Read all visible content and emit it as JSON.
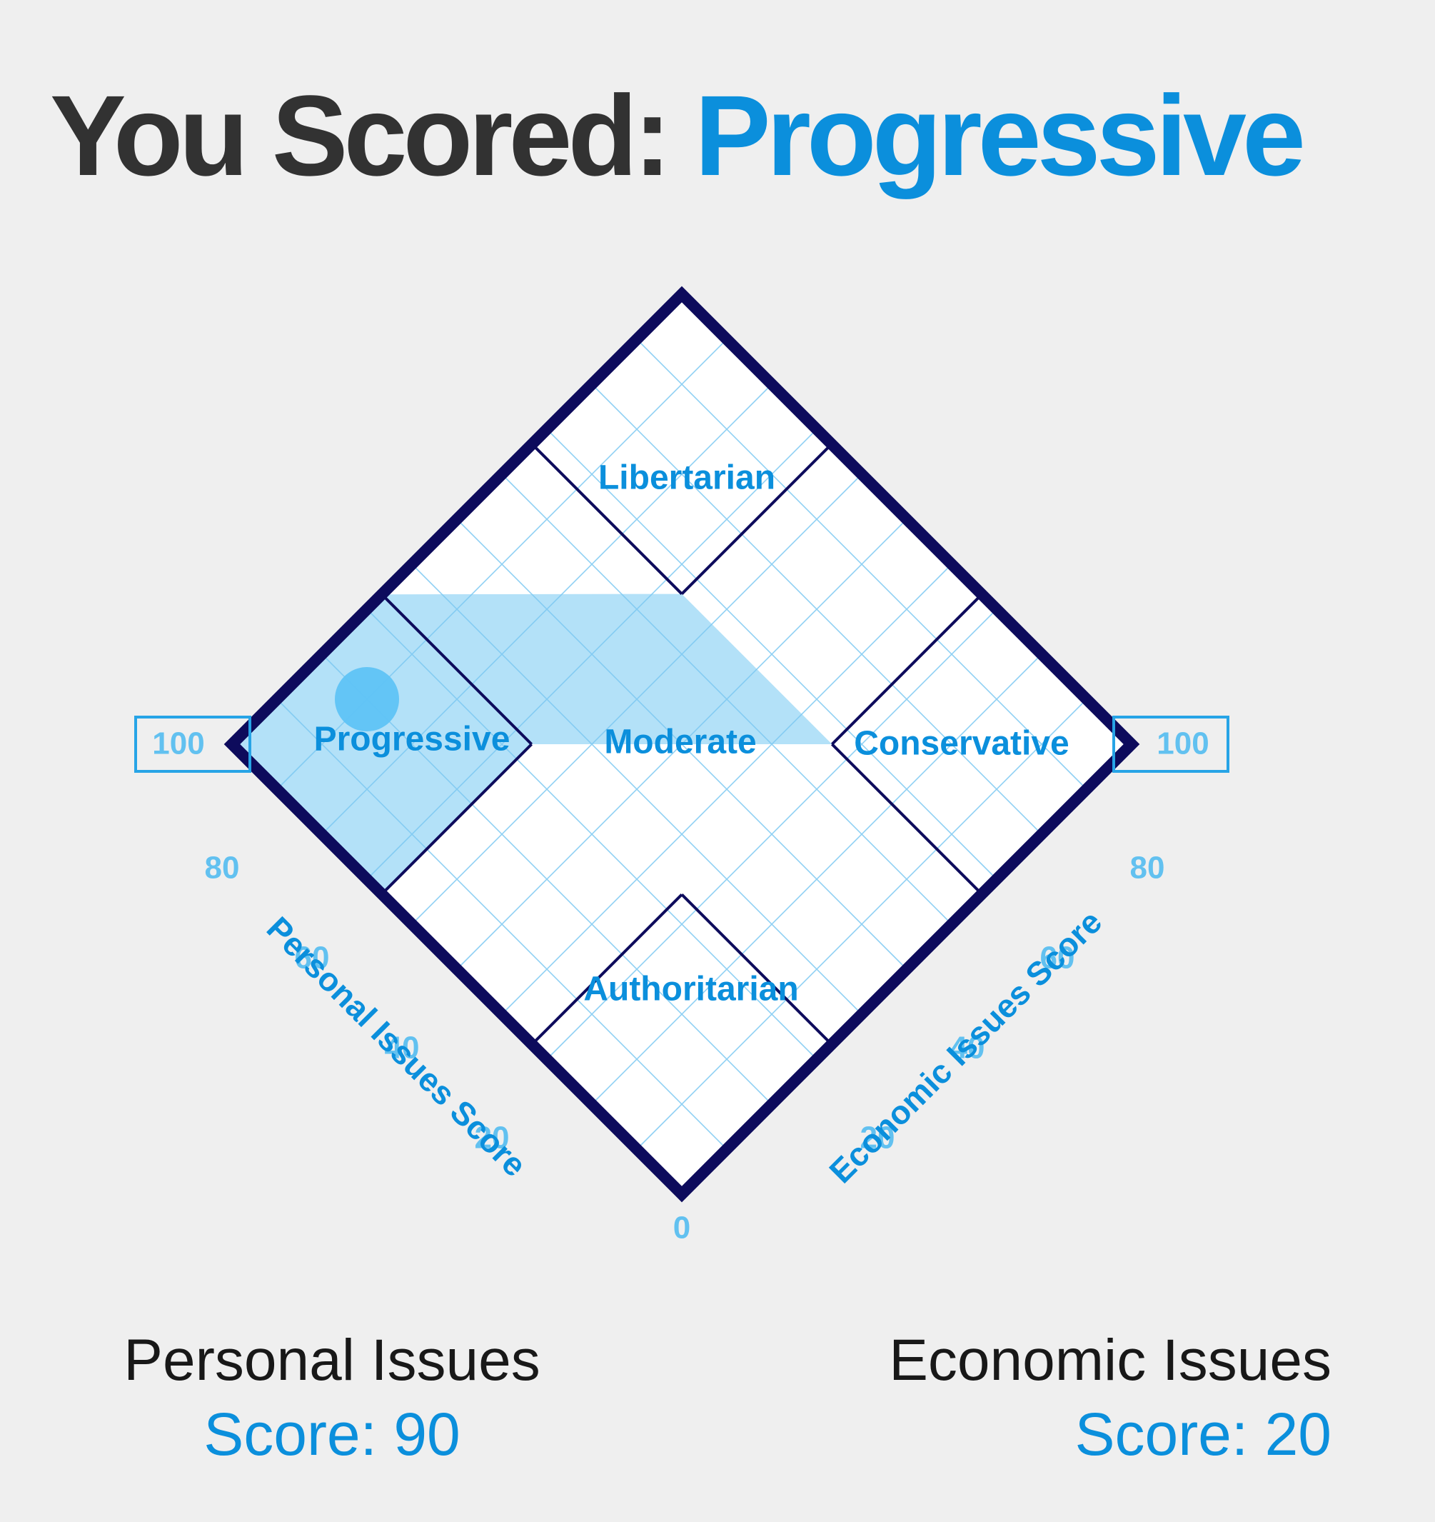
{
  "headline": {
    "prefix": "You Scored:",
    "result": "Progressive"
  },
  "colors": {
    "frame": "#0d0b5c",
    "grid": "#7cc8f2",
    "region_label": "#0b8fdc",
    "tick": "#62c1f0",
    "highlight": "#b3e1f8",
    "marker": "#5fc3f5",
    "callout_box": "#27a4e6",
    "headline_accent": "#0b8fdc"
  },
  "chart_data": {
    "type": "scatter",
    "layout": "diamond",
    "axes": [
      {
        "key": "personal",
        "title": "Personal Issues Score",
        "range": [
          0,
          100
        ],
        "ticks": [
          0,
          20,
          40,
          60,
          80,
          100
        ]
      },
      {
        "key": "economic",
        "title": "Economic Issues Score",
        "range": [
          0,
          100
        ],
        "ticks": [
          0,
          20,
          40,
          60,
          80,
          100
        ]
      }
    ],
    "grid": true,
    "regions": [
      {
        "name": "Libertarian",
        "highlighted": false
      },
      {
        "name": "Progressive",
        "highlighted": true
      },
      {
        "name": "Moderate",
        "highlighted": false
      },
      {
        "name": "Conservative",
        "highlighted": false
      },
      {
        "name": "Authoritarian",
        "highlighted": false
      }
    ],
    "point": {
      "personal": 90,
      "economic": 20
    }
  },
  "summary": {
    "personal": {
      "label": "Personal Issues",
      "score_text": "Score: 90"
    },
    "economic": {
      "label": "Economic Issues",
      "score_text": "Score: 20"
    }
  }
}
